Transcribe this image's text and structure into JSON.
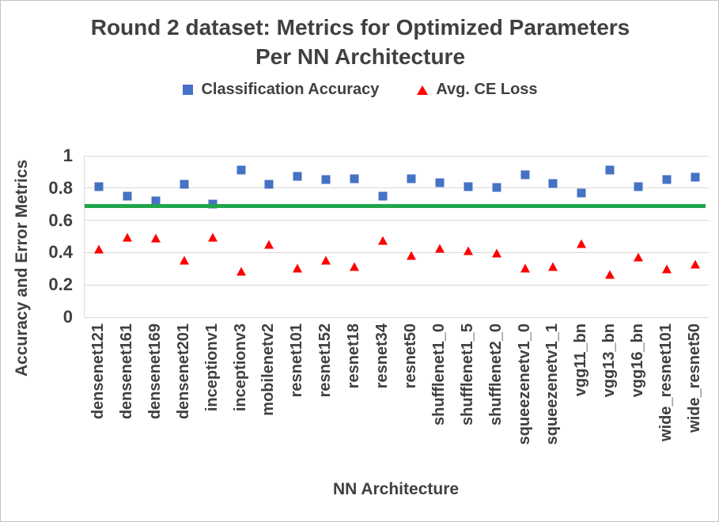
{
  "title": "Round 2 dataset: Metrics for Optimized Parameters Per NN Architecture",
  "chart_data": {
    "type": "scatter",
    "title": "Round 2 dataset: Metrics for Optimized Parameters Per NN Architecture",
    "xlabel": "NN Architecture",
    "ylabel": "Accuracy and Error Metrics",
    "ylim": [
      0,
      1
    ],
    "yticks": [
      0,
      0.2,
      0.4,
      0.6,
      0.8,
      1
    ],
    "grid": true,
    "legend_position": "top-center",
    "categories": [
      "densenet121",
      "densenet161",
      "densenet169",
      "densenet201",
      "inceptionv1",
      "inceptionv3",
      "mobilenetv2",
      "resnet101",
      "resnet152",
      "resnet18",
      "resnet34",
      "resnet50",
      "shufflenet1_0",
      "shufflenet1_5",
      "shufflenet2_0",
      "squeezenetv1_0",
      "squeezenetv1_1",
      "vgg11_bn",
      "vgg13_bn",
      "vgg16_bn",
      "wide_resnet101",
      "wide_resnet50"
    ],
    "series": [
      {
        "name": "Classification Accuracy",
        "marker": "square",
        "color": "#4472C4",
        "values": [
          0.81,
          0.75,
          0.72,
          0.825,
          0.7,
          0.91,
          0.825,
          0.875,
          0.855,
          0.86,
          0.75,
          0.86,
          0.835,
          0.81,
          0.805,
          0.88,
          0.83,
          0.77,
          0.91,
          0.81,
          0.855,
          0.87
        ]
      },
      {
        "name": "Avg. CE Loss",
        "marker": "triangle",
        "color": "#FE0000",
        "values": [
          0.42,
          0.495,
          0.49,
          0.355,
          0.495,
          0.285,
          0.45,
          0.305,
          0.355,
          0.315,
          0.475,
          0.38,
          0.425,
          0.41,
          0.395,
          0.305,
          0.315,
          0.455,
          0.265,
          0.375,
          0.3,
          0.33
        ]
      }
    ],
    "reference_line": {
      "value": 0.69,
      "color": "#21A54D"
    }
  }
}
